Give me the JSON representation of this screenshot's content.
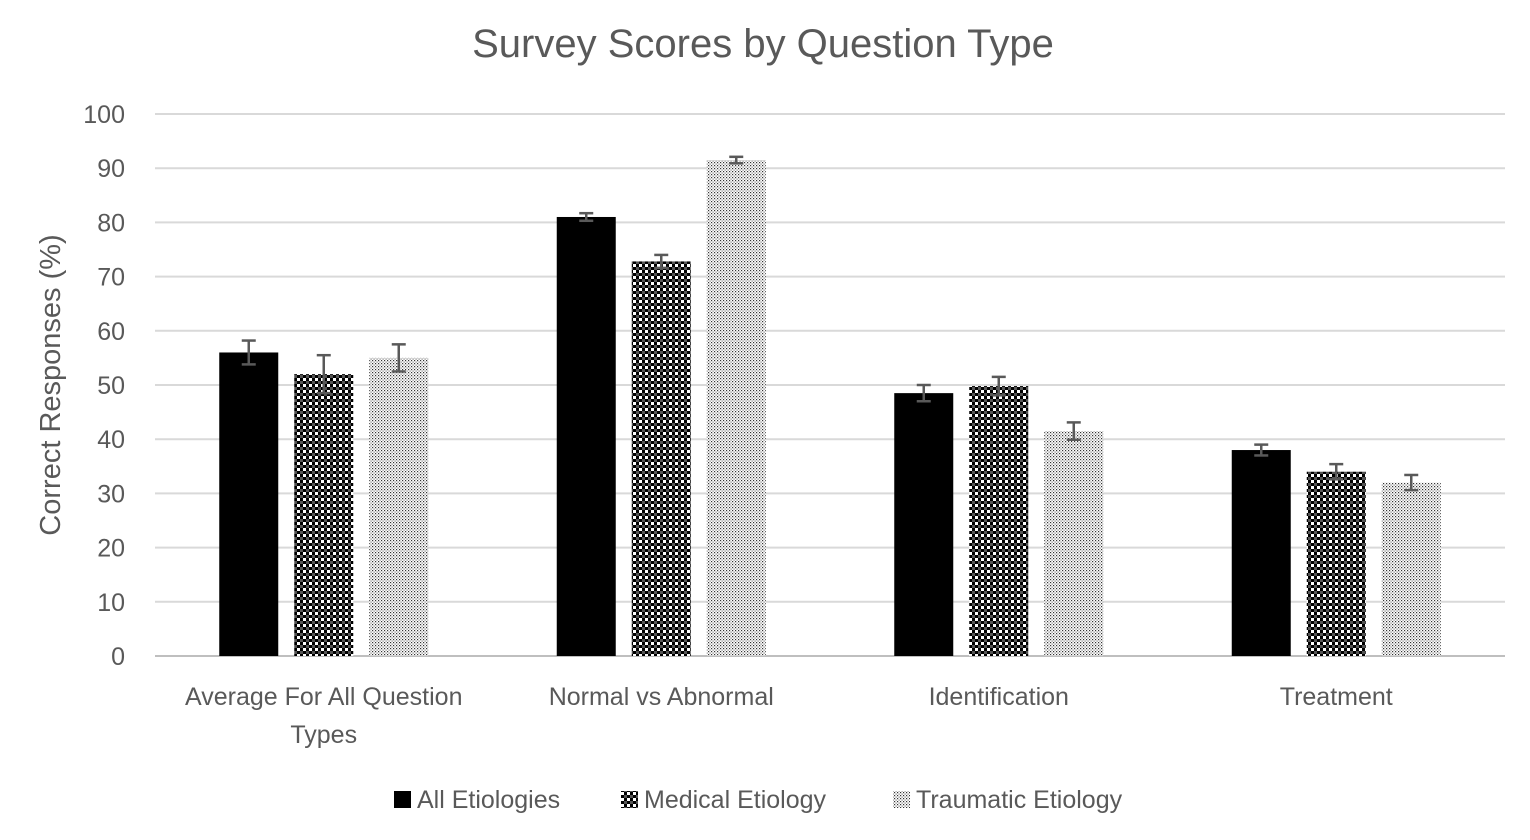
{
  "colors": {
    "gridline": "#d9d9d9",
    "axis": "#bfbfbf",
    "text": "#595959",
    "all_etiologies": "#000000",
    "medical_etiology": "#000000",
    "traumatic_etiology": "#000000",
    "error_bar": "#595959"
  },
  "chart_data": {
    "type": "bar",
    "title": "Survey Scores by Question Type",
    "xlabel": "",
    "ylabel": "Correct Responses (%)",
    "ylim": [
      0,
      100
    ],
    "yticks": [
      0,
      10,
      20,
      30,
      40,
      50,
      60,
      70,
      80,
      90,
      100
    ],
    "grid": true,
    "legend_position": "bottom",
    "categories": [
      [
        "Average For All Question",
        "Types"
      ],
      [
        "Normal vs Abnormal"
      ],
      [
        "Identification"
      ],
      [
        "Treatment"
      ]
    ],
    "series": [
      {
        "name": "All Etiologies",
        "pattern": "solid",
        "values": [
          56,
          81,
          48.5,
          38
        ],
        "errors": [
          2.2,
          0.7,
          1.5,
          1.0
        ]
      },
      {
        "name": "Medical Etiology",
        "pattern": "checker",
        "values": [
          52,
          72.8,
          49.8,
          34
        ],
        "errors": [
          3.5,
          1.2,
          1.7,
          1.4
        ]
      },
      {
        "name": "Traumatic Etiology",
        "pattern": "dots",
        "values": [
          55,
          91.5,
          41.5,
          32
        ],
        "errors": [
          2.5,
          0.6,
          1.6,
          1.4
        ]
      }
    ]
  }
}
